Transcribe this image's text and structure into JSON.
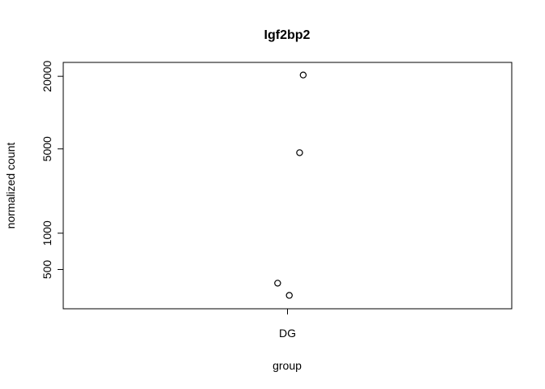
{
  "chart_data": {
    "type": "scatter",
    "title": "Igf2bp2",
    "xlabel": "group",
    "ylabel": "normalized count",
    "y_scale": "log",
    "categories": [
      "DG"
    ],
    "ylim": [
      280,
      22000
    ],
    "y_ticks": [
      500,
      1000,
      5000,
      20000
    ],
    "y_tick_labels": [
      "500",
      "1000",
      "5000",
      "20000"
    ],
    "grid": false,
    "points": [
      {
        "category": "DG",
        "jitter": 0.35,
        "y": 20500
      },
      {
        "category": "DG",
        "jitter": 0.27,
        "y": 4650
      },
      {
        "category": "DG",
        "jitter": -0.22,
        "y": 385
      },
      {
        "category": "DG",
        "jitter": 0.04,
        "y": 305
      }
    ]
  }
}
